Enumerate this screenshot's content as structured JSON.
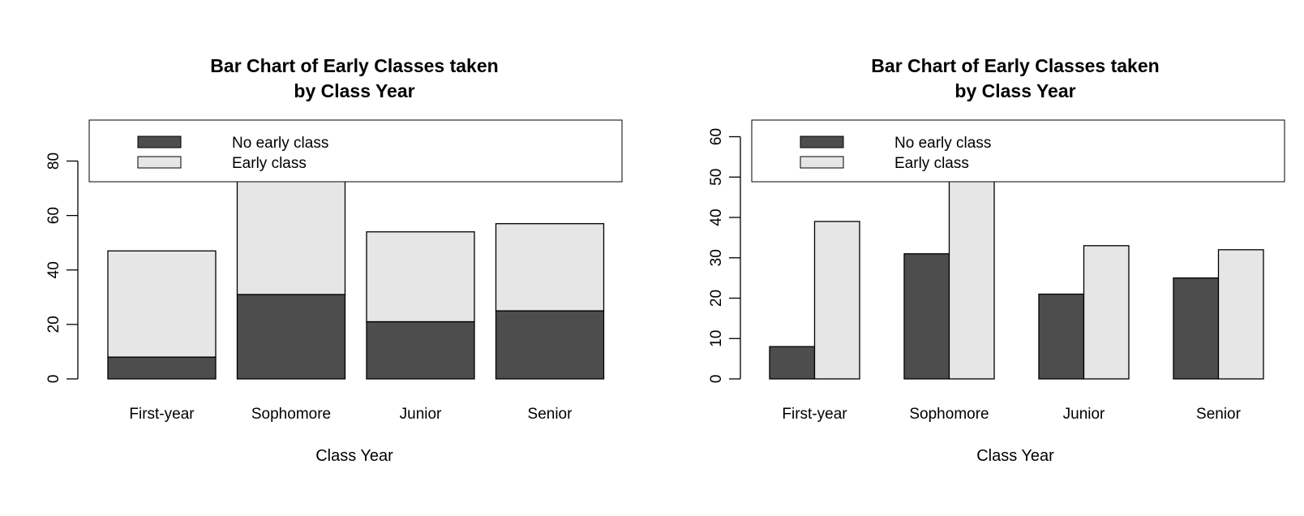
{
  "chart_data": [
    {
      "type": "bar",
      "stacked": true,
      "title": "Bar Chart of Early Classes taken\nby Class Year",
      "xlabel": "Class Year",
      "ylabel": "",
      "categories": [
        "First-year",
        "Sophomore",
        "Junior",
        "Senior"
      ],
      "series": [
        {
          "name": "No early class",
          "values": [
            8,
            31,
            21,
            25
          ],
          "color": "#4d4d4d"
        },
        {
          "name": "Early class",
          "values": [
            39,
            50,
            33,
            32
          ],
          "color": "#e6e6e6"
        }
      ],
      "yticks": [
        0,
        20,
        40,
        60,
        80
      ],
      "ylim": [
        0,
        81
      ],
      "legend": "top"
    },
    {
      "type": "bar",
      "stacked": false,
      "title": "Bar Chart of Early Classes taken\nby Class Year",
      "xlabel": "Class Year",
      "ylabel": "",
      "categories": [
        "First-year",
        "Sophomore",
        "Junior",
        "Senior"
      ],
      "series": [
        {
          "name": "No early class",
          "values": [
            8,
            31,
            21,
            25
          ],
          "color": "#4d4d4d"
        },
        {
          "name": "Early class",
          "values": [
            39,
            50,
            33,
            32
          ],
          "color": "#e6e6e6"
        }
      ],
      "yticks": [
        0,
        10,
        20,
        30,
        40,
        50,
        60
      ],
      "ylim": [
        0,
        50
      ],
      "legend": "top"
    }
  ]
}
